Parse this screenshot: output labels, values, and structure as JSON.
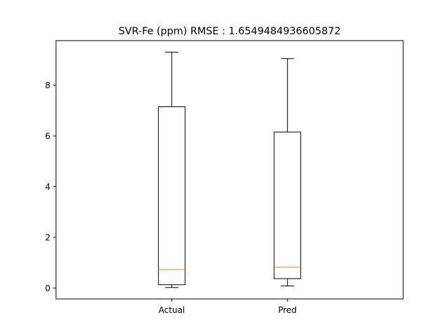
{
  "chart_data": {
    "type": "box",
    "title": "SVR-Fe (ppm) RMSE : 1.6549484936605872",
    "xlabel": "",
    "ylabel": "",
    "categories": [
      "Actual",
      "Pred"
    ],
    "boxes": [
      {
        "name": "Actual",
        "whisker_low": 0.02,
        "q1": 0.13,
        "median": 0.73,
        "q3": 7.15,
        "whisker_high": 9.3
      },
      {
        "name": "Pred",
        "whisker_low": 0.08,
        "q1": 0.37,
        "median": 0.82,
        "q3": 6.15,
        "whisker_high": 9.05
      }
    ],
    "ylim": [
      -0.43,
      9.76
    ],
    "yticks": [
      0,
      2,
      4,
      6,
      8
    ],
    "grid": false,
    "colors": {
      "box": "#000000",
      "median": "#ff7f0e",
      "axes": "#000000"
    }
  }
}
